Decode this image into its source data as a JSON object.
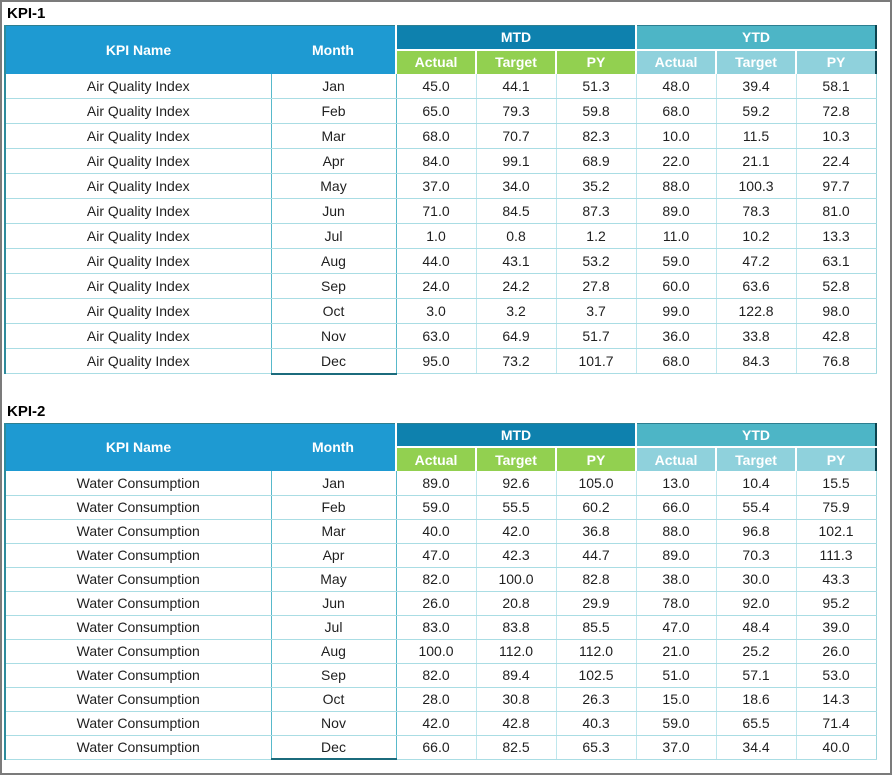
{
  "headers": {
    "kpi_name": "KPI Name",
    "month": "Month",
    "mtd": "MTD",
    "ytd": "YTD",
    "sub": [
      "Actual",
      "Target",
      "PY"
    ]
  },
  "colors": {
    "header_blue": "#1e9ad2",
    "mtd_band": "#0e81ae",
    "ytd_band": "#4db5c6",
    "mtd_sub_green": "#92d050",
    "ytd_sub_teal": "#8fd1dc",
    "row_border": "#aadde4",
    "month_border": "#58b9cb",
    "table_edge": "#2e8b9c",
    "outer_frame": "#7b7b7b"
  },
  "tables": [
    {
      "title": "KPI-1",
      "kpi_name": "Air Quality Index",
      "rows": [
        {
          "month": "Jan",
          "values": [
            "45.0",
            "44.1",
            "51.3",
            "48.0",
            "39.4",
            "58.1"
          ]
        },
        {
          "month": "Feb",
          "values": [
            "65.0",
            "79.3",
            "59.8",
            "68.0",
            "59.2",
            "72.8"
          ]
        },
        {
          "month": "Mar",
          "values": [
            "68.0",
            "70.7",
            "82.3",
            "10.0",
            "11.5",
            "10.3"
          ]
        },
        {
          "month": "Apr",
          "values": [
            "84.0",
            "99.1",
            "68.9",
            "22.0",
            "21.1",
            "22.4"
          ]
        },
        {
          "month": "May",
          "values": [
            "37.0",
            "34.0",
            "35.2",
            "88.0",
            "100.3",
            "97.7"
          ]
        },
        {
          "month": "Jun",
          "values": [
            "71.0",
            "84.5",
            "87.3",
            "89.0",
            "78.3",
            "81.0"
          ]
        },
        {
          "month": "Jul",
          "values": [
            "1.0",
            "0.8",
            "1.2",
            "11.0",
            "10.2",
            "13.3"
          ]
        },
        {
          "month": "Aug",
          "values": [
            "44.0",
            "43.1",
            "53.2",
            "59.0",
            "47.2",
            "63.1"
          ]
        },
        {
          "month": "Sep",
          "values": [
            "24.0",
            "24.2",
            "27.8",
            "60.0",
            "63.6",
            "52.8"
          ]
        },
        {
          "month": "Oct",
          "values": [
            "3.0",
            "3.2",
            "3.7",
            "99.0",
            "122.8",
            "98.0"
          ]
        },
        {
          "month": "Nov",
          "values": [
            "63.0",
            "64.9",
            "51.7",
            "36.0",
            "33.8",
            "42.8"
          ]
        },
        {
          "month": "Dec",
          "values": [
            "95.0",
            "73.2",
            "101.7",
            "68.0",
            "84.3",
            "76.8"
          ]
        }
      ]
    },
    {
      "title": "KPI-2",
      "kpi_name": "Water Consumption",
      "rows": [
        {
          "month": "Jan",
          "values": [
            "89.0",
            "92.6",
            "105.0",
            "13.0",
            "10.4",
            "15.5"
          ]
        },
        {
          "month": "Feb",
          "values": [
            "59.0",
            "55.5",
            "60.2",
            "66.0",
            "55.4",
            "75.9"
          ]
        },
        {
          "month": "Mar",
          "values": [
            "40.0",
            "42.0",
            "36.8",
            "88.0",
            "96.8",
            "102.1"
          ]
        },
        {
          "month": "Apr",
          "values": [
            "47.0",
            "42.3",
            "44.7",
            "89.0",
            "70.3",
            "111.3"
          ]
        },
        {
          "month": "May",
          "values": [
            "82.0",
            "100.0",
            "82.8",
            "38.0",
            "30.0",
            "43.3"
          ]
        },
        {
          "month": "Jun",
          "values": [
            "26.0",
            "20.8",
            "29.9",
            "78.0",
            "92.0",
            "95.2"
          ]
        },
        {
          "month": "Jul",
          "values": [
            "83.0",
            "83.8",
            "85.5",
            "47.0",
            "48.4",
            "39.0"
          ]
        },
        {
          "month": "Aug",
          "values": [
            "100.0",
            "112.0",
            "112.0",
            "21.0",
            "25.2",
            "26.0"
          ]
        },
        {
          "month": "Sep",
          "values": [
            "82.0",
            "89.4",
            "102.5",
            "51.0",
            "57.1",
            "53.0"
          ]
        },
        {
          "month": "Oct",
          "values": [
            "28.0",
            "30.8",
            "26.3",
            "15.0",
            "18.6",
            "14.3"
          ]
        },
        {
          "month": "Nov",
          "values": [
            "42.0",
            "42.8",
            "40.3",
            "59.0",
            "65.5",
            "71.4"
          ]
        },
        {
          "month": "Dec",
          "values": [
            "66.0",
            "82.5",
            "65.3",
            "37.0",
            "34.4",
            "40.0"
          ]
        }
      ]
    }
  ]
}
